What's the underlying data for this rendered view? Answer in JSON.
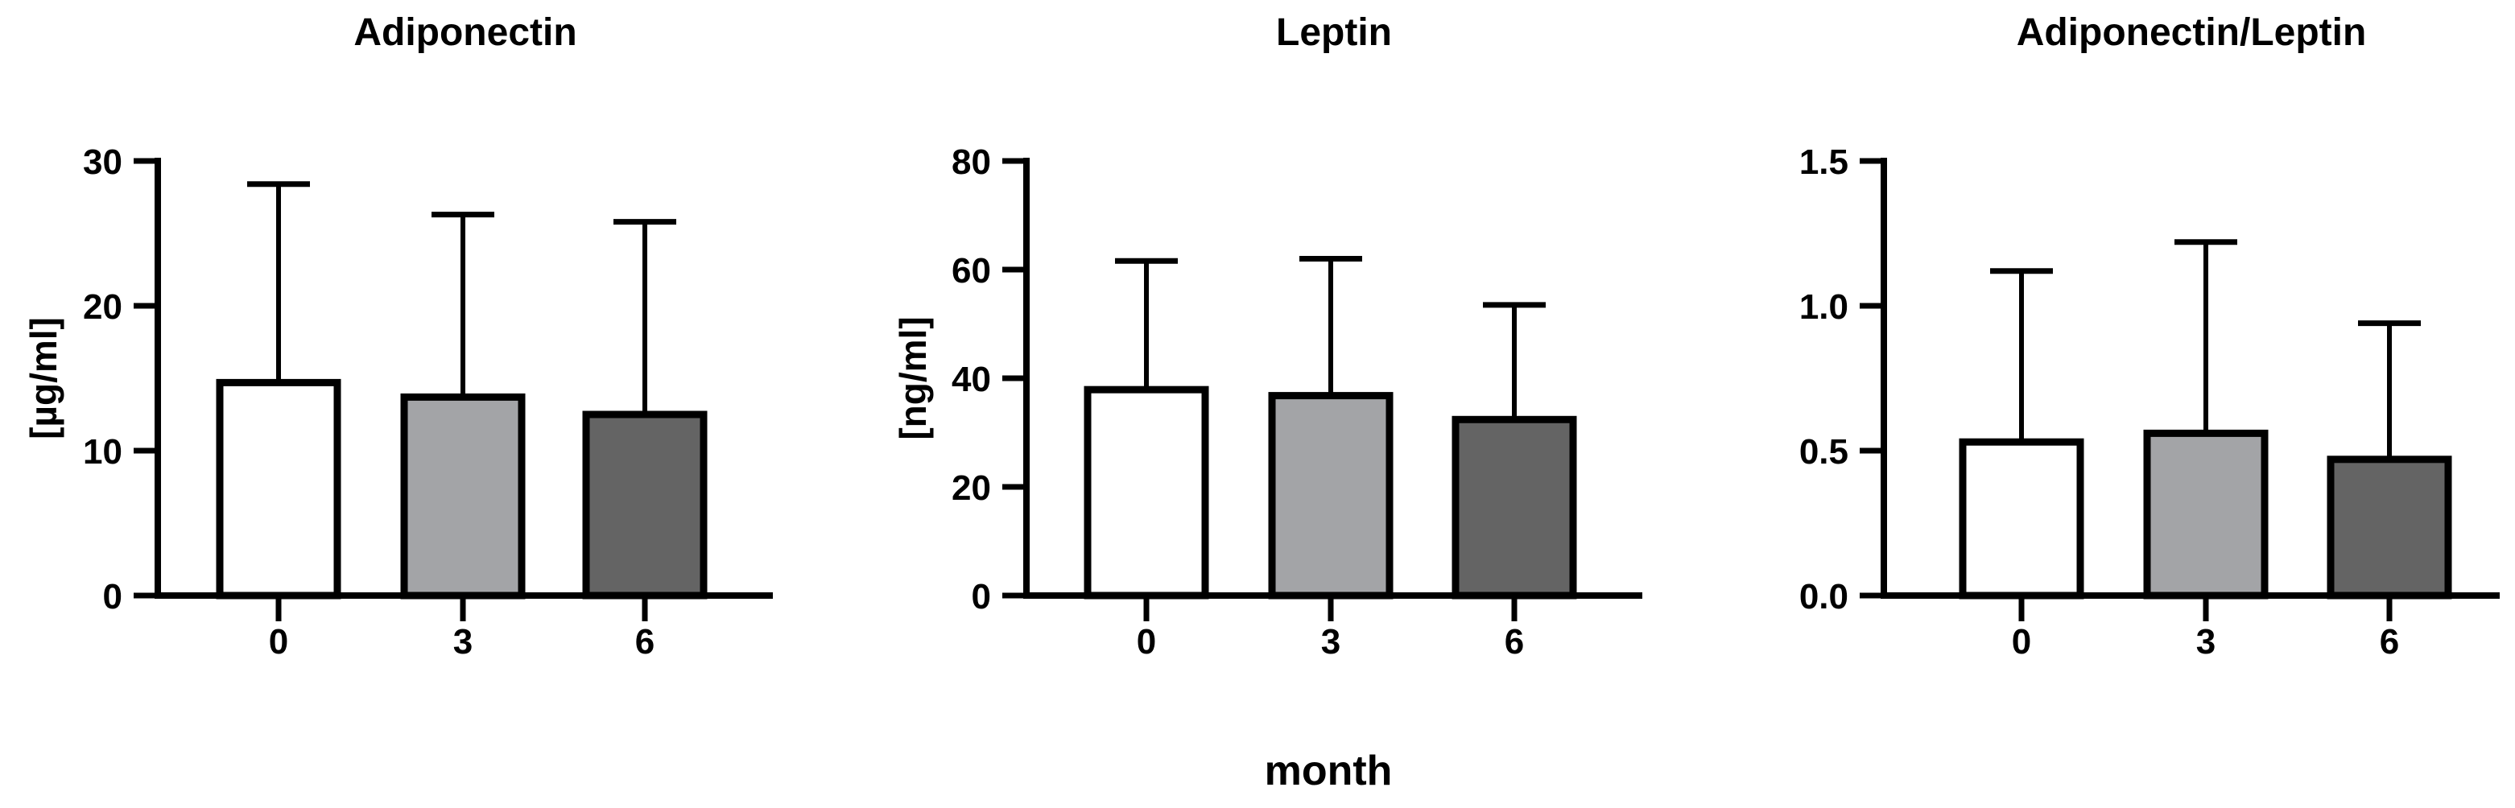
{
  "figure": {
    "xlabel": "month",
    "bar_colors": [
      "#FFFFFF",
      "#A3A4A7",
      "#646464"
    ],
    "bar_border_color": "#000000",
    "axis_color": "#000000",
    "background_color": "#FFFFFF"
  },
  "chart_data": [
    {
      "type": "bar",
      "title": "Adiponectin",
      "ylabel": "[µg/ml]",
      "xlabel": "month",
      "categories": [
        "0",
        "3",
        "6"
      ],
      "values": [
        14.7,
        13.7,
        12.5
      ],
      "error_top": [
        28.4,
        26.3,
        25.8
      ],
      "error_type": "upper-sd-whisker",
      "ylim": [
        0,
        30
      ],
      "yticks": [
        0,
        10,
        20,
        30
      ],
      "ytick_labels": [
        "0",
        "10",
        "20",
        "30"
      ],
      "grid": false,
      "legend": "none"
    },
    {
      "type": "bar",
      "title": "Leptin",
      "ylabel": "[ng/ml]",
      "xlabel": "month",
      "categories": [
        "0",
        "3",
        "6"
      ],
      "values": [
        37.9,
        36.8,
        32.4
      ],
      "error_top": [
        61.6,
        62.0,
        53.5
      ],
      "error_type": "upper-sd-whisker",
      "ylim": [
        0,
        80
      ],
      "yticks": [
        0,
        20,
        40,
        60,
        80
      ],
      "ytick_labels": [
        "0",
        "20",
        "40",
        "60",
        "80"
      ],
      "grid": false,
      "legend": "none"
    },
    {
      "type": "bar",
      "title": "Adiponectin/Leptin",
      "ylabel": "",
      "xlabel": "month",
      "categories": [
        "0",
        "3",
        "6"
      ],
      "values": [
        0.53,
        0.56,
        0.47
      ],
      "error_top": [
        1.12,
        1.22,
        0.94
      ],
      "error_type": "upper-sd-whisker",
      "ylim": [
        0,
        1.5
      ],
      "yticks": [
        0,
        0.5,
        1.0,
        1.5
      ],
      "ytick_labels": [
        "0.0",
        "0.5",
        "1.0",
        "1.5"
      ],
      "grid": false,
      "legend": "none"
    }
  ]
}
